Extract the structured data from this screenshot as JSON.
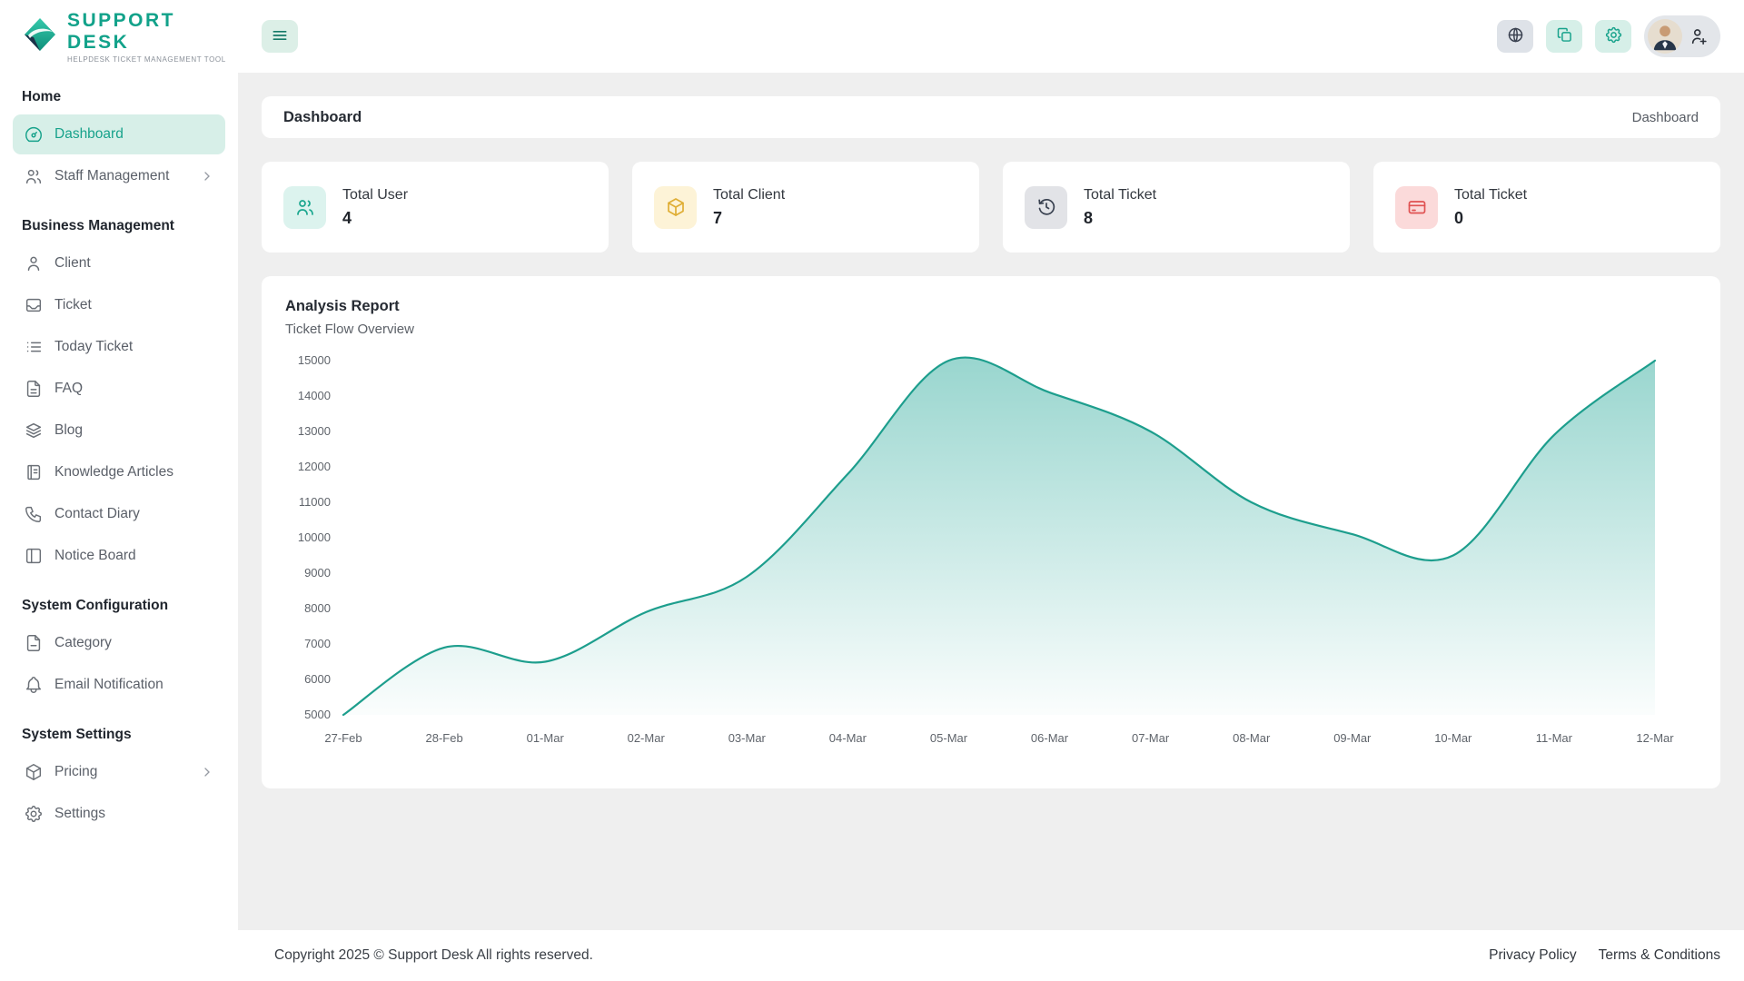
{
  "app": {
    "logo_title": "SUPPORT DESK",
    "logo_subtitle": "HELPDESK TICKET MANAGEMENT TOOL"
  },
  "header": {
    "icons": [
      "menu-icon",
      "translate-icon",
      "copy-icon",
      "settings-icon",
      "avatar",
      "user-plus-icon"
    ]
  },
  "sidebar": {
    "sections": [
      {
        "title": "Home",
        "items": [
          {
            "label": "Dashboard",
            "icon": "dashboard-icon",
            "active": true
          },
          {
            "label": "Staff Management",
            "icon": "staff-icon",
            "chevron": true
          }
        ]
      },
      {
        "title": "Business Management",
        "items": [
          {
            "label": "Client",
            "icon": "client-icon"
          },
          {
            "label": "Ticket",
            "icon": "ticket-icon"
          },
          {
            "label": "Today Ticket",
            "icon": "today-ticket-icon"
          },
          {
            "label": "FAQ",
            "icon": "faq-icon"
          },
          {
            "label": "Blog",
            "icon": "blog-icon"
          },
          {
            "label": "Knowledge Articles",
            "icon": "knowledge-icon"
          },
          {
            "label": "Contact Diary",
            "icon": "contact-diary-icon"
          },
          {
            "label": "Notice Board",
            "icon": "notice-board-icon"
          }
        ]
      },
      {
        "title": "System Configuration",
        "items": [
          {
            "label": "Category",
            "icon": "category-icon"
          },
          {
            "label": "Email Notification",
            "icon": "bell-icon"
          }
        ]
      },
      {
        "title": "System Settings",
        "items": [
          {
            "label": "Pricing",
            "icon": "pricing-icon",
            "chevron": true
          },
          {
            "label": "Settings",
            "icon": "gear-icon"
          }
        ]
      }
    ]
  },
  "breadcrumb": {
    "title": "Dashboard",
    "path": "Dashboard"
  },
  "stats": [
    {
      "label": "Total User",
      "value": "4",
      "icon": "users-icon",
      "bg": "#dcf3ee",
      "color": "#1ba78f"
    },
    {
      "label": "Total Client",
      "value": "7",
      "icon": "package-icon",
      "bg": "#fdf3d7",
      "color": "#dfae35"
    },
    {
      "label": "Total Ticket",
      "value": "8",
      "icon": "history-icon",
      "bg": "#e2e3e7",
      "color": "#394150"
    },
    {
      "label": "Total Ticket",
      "value": "0",
      "icon": "credit-card-icon",
      "bg": "#fbdada",
      "color": "#e05252"
    }
  ],
  "report": {
    "title": "Analysis Report",
    "subtitle": "Ticket Flow Overview"
  },
  "chart_data": {
    "type": "area",
    "title": "Ticket Flow Overview",
    "categories": [
      "27-Feb",
      "28-Feb",
      "01-Mar",
      "02-Mar",
      "03-Mar",
      "04-Mar",
      "05-Mar",
      "06-Mar",
      "07-Mar",
      "08-Mar",
      "09-Mar",
      "10-Mar",
      "11-Mar",
      "12-Mar"
    ],
    "values": [
      5000,
      6900,
      6500,
      7900,
      8900,
      11800,
      15000,
      14100,
      13000,
      11000,
      10100,
      9500,
      12900,
      15000
    ],
    "xlabel": "",
    "ylabel": "",
    "ylim": [
      5000,
      15000
    ],
    "ytick_step": 1000,
    "grid": false,
    "legend": "none",
    "line_color": "#1d9e8d",
    "fill_color": "#2aa99a"
  },
  "footer": {
    "copyright": "Copyright 2025 © Support Desk All rights reserved.",
    "links": [
      "Privacy Policy",
      "Terms & Conditions"
    ]
  },
  "colors": {
    "accent": "#17a28b",
    "sidebar_active_bg": "#d7efe8",
    "content_bg": "#efefef"
  }
}
